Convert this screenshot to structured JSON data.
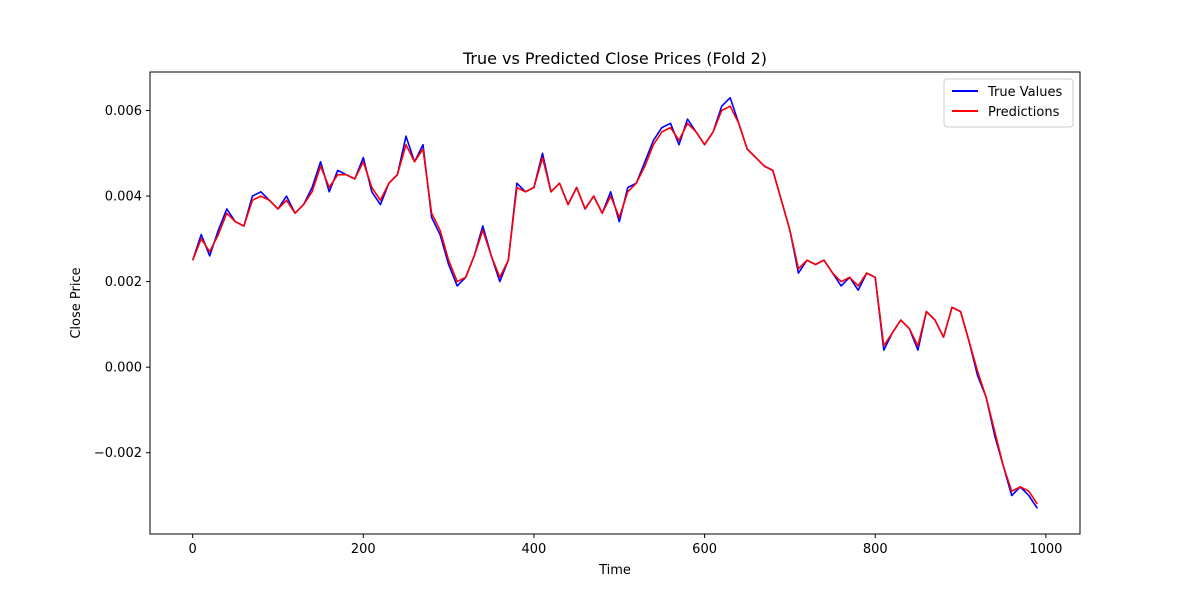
{
  "chart_data": {
    "type": "line",
    "title": "True vs Predicted Close Prices (Fold 2)",
    "xlabel": "Time",
    "ylabel": "Close Price",
    "xlim": [
      -50,
      1040
    ],
    "ylim": [
      -0.0039,
      0.0069
    ],
    "x_ticks": [
      0,
      200,
      400,
      600,
      800,
      1000
    ],
    "x_tick_labels": [
      "0",
      "200",
      "400",
      "600",
      "800",
      "1000"
    ],
    "y_ticks": [
      -0.002,
      0.0,
      0.002,
      0.004,
      0.006
    ],
    "y_tick_labels": [
      "−0.002",
      "0.000",
      "0.002",
      "0.004",
      "0.006"
    ],
    "grid": false,
    "legend_position": "top-right",
    "series": [
      {
        "name": "True Values",
        "color": "#0000ff",
        "x": [
          0,
          10,
          20,
          30,
          40,
          50,
          60,
          70,
          80,
          90,
          100,
          110,
          120,
          130,
          140,
          150,
          160,
          170,
          180,
          190,
          200,
          210,
          220,
          230,
          240,
          250,
          260,
          270,
          280,
          290,
          300,
          310,
          320,
          330,
          340,
          350,
          360,
          370,
          380,
          390,
          400,
          410,
          420,
          430,
          440,
          450,
          460,
          470,
          480,
          490,
          500,
          510,
          520,
          530,
          540,
          550,
          560,
          570,
          580,
          590,
          600,
          610,
          620,
          630,
          640,
          650,
          660,
          670,
          680,
          690,
          700,
          710,
          720,
          730,
          740,
          750,
          760,
          770,
          780,
          790,
          800,
          810,
          820,
          830,
          840,
          850,
          860,
          870,
          880,
          890,
          900,
          910,
          920,
          930,
          940,
          950,
          960,
          970,
          980,
          990
        ],
        "y": [
          0.0025,
          0.0031,
          0.0026,
          0.0032,
          0.0037,
          0.0034,
          0.0033,
          0.004,
          0.0041,
          0.0039,
          0.0037,
          0.004,
          0.0036,
          0.0038,
          0.0042,
          0.0048,
          0.0041,
          0.0046,
          0.0045,
          0.0044,
          0.0049,
          0.0041,
          0.0038,
          0.0043,
          0.0045,
          0.0054,
          0.0048,
          0.0052,
          0.0035,
          0.0031,
          0.0024,
          0.0019,
          0.0021,
          0.0026,
          0.0033,
          0.0026,
          0.002,
          0.0025,
          0.0043,
          0.0041,
          0.0042,
          0.005,
          0.0041,
          0.0043,
          0.0038,
          0.0042,
          0.0037,
          0.004,
          0.0036,
          0.0041,
          0.0034,
          0.0042,
          0.0043,
          0.0048,
          0.0053,
          0.0056,
          0.0057,
          0.0052,
          0.0058,
          0.0055,
          0.0052,
          0.0055,
          0.0061,
          0.0063,
          0.0057,
          0.0051,
          0.0049,
          0.0047,
          0.0046,
          0.0039,
          0.0032,
          0.0022,
          0.0025,
          0.0024,
          0.0025,
          0.0022,
          0.0019,
          0.0021,
          0.0018,
          0.0022,
          0.0021,
          0.0004,
          0.0008,
          0.0011,
          0.0009,
          0.0004,
          0.0013,
          0.0011,
          0.0007,
          0.0014,
          0.0013,
          0.0006,
          -0.0002,
          -0.0007,
          -0.0016,
          -0.0023,
          -0.003,
          -0.0028,
          -0.003,
          -0.0033
        ]
      },
      {
        "name": "Predictions",
        "color": "#ff0000",
        "x": [
          0,
          10,
          20,
          30,
          40,
          50,
          60,
          70,
          80,
          90,
          100,
          110,
          120,
          130,
          140,
          150,
          160,
          170,
          180,
          190,
          200,
          210,
          220,
          230,
          240,
          250,
          260,
          270,
          280,
          290,
          300,
          310,
          320,
          330,
          340,
          350,
          360,
          370,
          380,
          390,
          400,
          410,
          420,
          430,
          440,
          450,
          460,
          470,
          480,
          490,
          500,
          510,
          520,
          530,
          540,
          550,
          560,
          570,
          580,
          590,
          600,
          610,
          620,
          630,
          640,
          650,
          660,
          670,
          680,
          690,
          700,
          710,
          720,
          730,
          740,
          750,
          760,
          770,
          780,
          790,
          800,
          810,
          820,
          830,
          840,
          850,
          860,
          870,
          880,
          890,
          900,
          910,
          920,
          930,
          940,
          950,
          960,
          970,
          980,
          990
        ],
        "y": [
          0.0025,
          0.003,
          0.0027,
          0.0031,
          0.0036,
          0.0034,
          0.0033,
          0.0039,
          0.004,
          0.0039,
          0.0037,
          0.0039,
          0.0036,
          0.0038,
          0.0041,
          0.0047,
          0.0042,
          0.0045,
          0.0045,
          0.0044,
          0.0048,
          0.0042,
          0.0039,
          0.0043,
          0.0045,
          0.0052,
          0.0048,
          0.0051,
          0.0036,
          0.0032,
          0.0025,
          0.002,
          0.0021,
          0.0026,
          0.0032,
          0.0026,
          0.0021,
          0.0025,
          0.0042,
          0.0041,
          0.0042,
          0.0049,
          0.0041,
          0.0043,
          0.0038,
          0.0042,
          0.0037,
          0.004,
          0.0036,
          0.004,
          0.0035,
          0.0041,
          0.0043,
          0.0047,
          0.0052,
          0.0055,
          0.0056,
          0.0053,
          0.0057,
          0.0055,
          0.0052,
          0.0055,
          0.006,
          0.0061,
          0.0057,
          0.0051,
          0.0049,
          0.0047,
          0.0046,
          0.0039,
          0.0032,
          0.0023,
          0.0025,
          0.0024,
          0.0025,
          0.0022,
          0.002,
          0.0021,
          0.0019,
          0.0022,
          0.0021,
          0.0005,
          0.0008,
          0.0011,
          0.0009,
          0.0005,
          0.0013,
          0.0011,
          0.0007,
          0.0014,
          0.0013,
          0.0006,
          -0.0001,
          -0.0007,
          -0.0015,
          -0.0023,
          -0.0029,
          -0.0028,
          -0.0029,
          -0.0032
        ]
      }
    ]
  }
}
